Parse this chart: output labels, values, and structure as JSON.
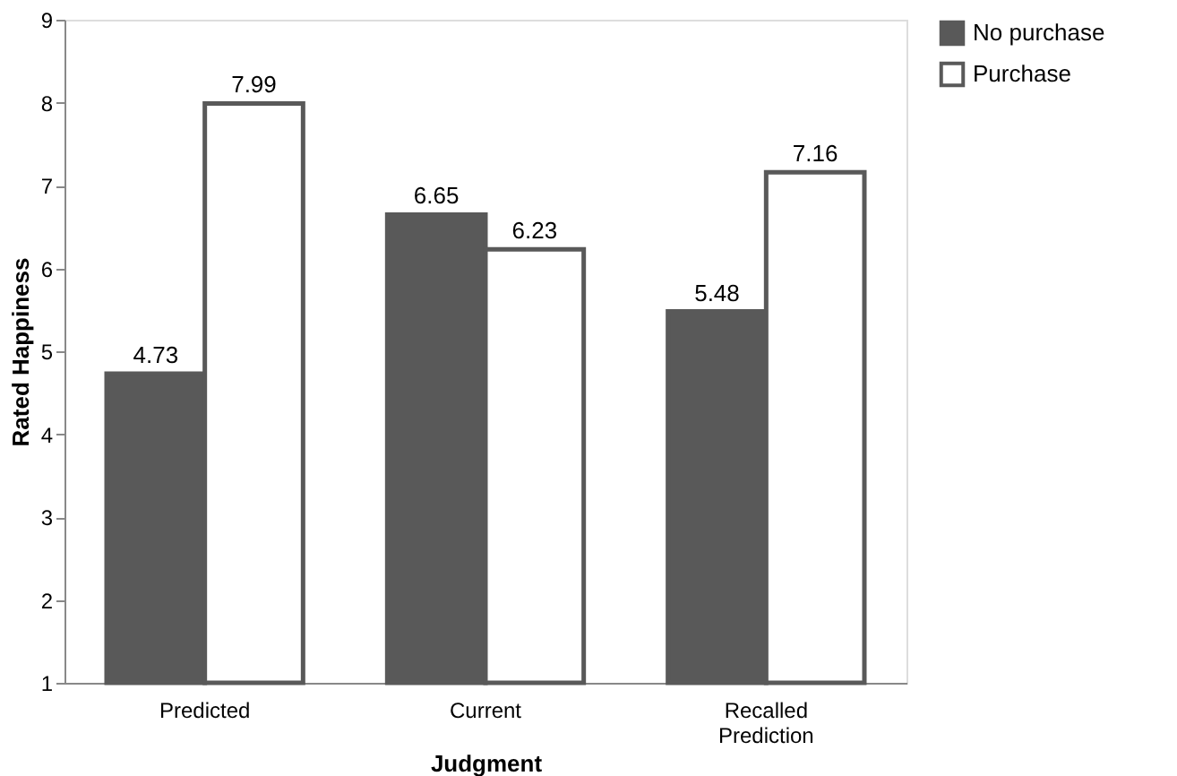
{
  "chart_data": {
    "type": "bar",
    "xlabel": "Judgment",
    "ylabel": "Rated Happiness",
    "categories": [
      "Predicted",
      "Current",
      "Recalled Prediction"
    ],
    "series": [
      {
        "name": "No purchase",
        "color": "#595959",
        "values": [
          4.73,
          6.65,
          5.48
        ]
      },
      {
        "name": "Purchase",
        "color": "#ffffff",
        "values": [
          7.99,
          6.23,
          7.16
        ]
      }
    ],
    "ylim": [
      1,
      9
    ],
    "yticks": [
      1,
      2,
      3,
      4,
      5,
      6,
      7,
      8,
      9
    ],
    "data_labels": true,
    "grid": false,
    "legend": "right"
  }
}
